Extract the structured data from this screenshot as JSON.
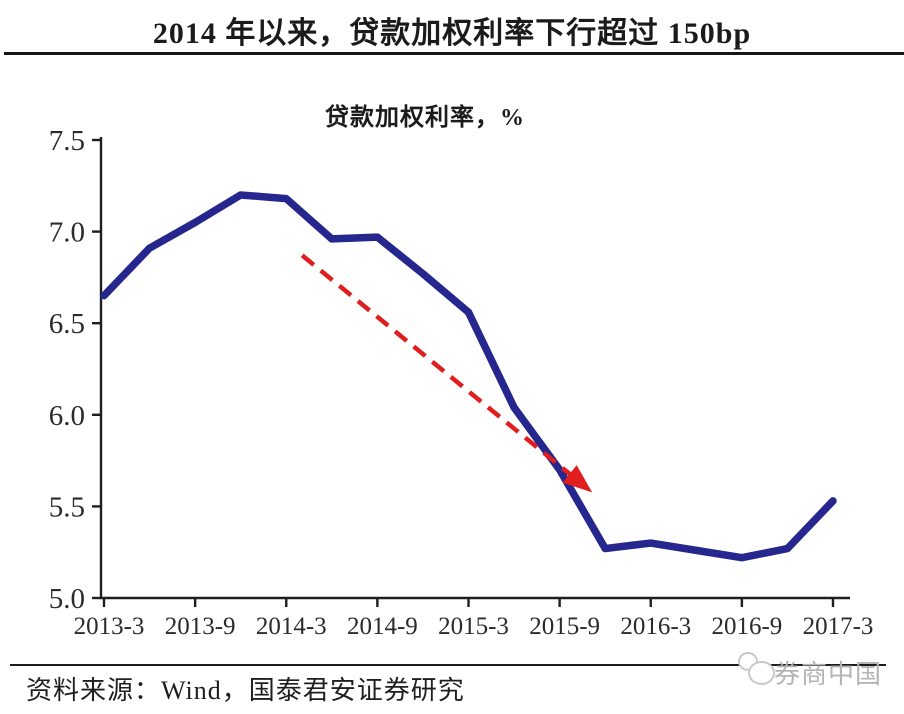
{
  "page": {
    "title": "2014 年以来，贷款加权利率下行超过 150bp",
    "footer": {
      "source_label": "资料来源：Wind，国泰君安证券研究",
      "watermark_text": "券商中国"
    }
  },
  "chart_data": {
    "type": "line",
    "title": "贷款加权利率，%",
    "x": [
      "2013-3",
      "2013-6",
      "2013-9",
      "2013-12",
      "2014-3",
      "2014-6",
      "2014-9",
      "2014-12",
      "2015-3",
      "2015-6",
      "2015-9",
      "2015-12",
      "2016-3",
      "2016-6",
      "2016-9",
      "2016-12",
      "2017-3"
    ],
    "series": [
      {
        "name": "贷款加权利率",
        "values": [
          6.65,
          6.91,
          7.05,
          7.2,
          7.18,
          6.96,
          6.97,
          6.77,
          6.56,
          6.04,
          5.7,
          5.27,
          5.3,
          5.26,
          5.22,
          5.27,
          5.53
        ]
      }
    ],
    "x_tick_labels": [
      "2013-3",
      "2013-9",
      "2014-3",
      "2014-9",
      "2015-3",
      "2015-9",
      "2016-3",
      "2016-9",
      "2017-3"
    ],
    "y_ticks": [
      "5.0",
      "5.5",
      "6.0",
      "6.5",
      "7.0",
      "7.5"
    ],
    "ylim": [
      5.0,
      7.5
    ],
    "grid": false,
    "legend_position": "none",
    "colors": {
      "line": "#26268f",
      "arrow": "#e01e1e",
      "axis": "#1f1f1f",
      "tick_text": "#2b2b2b"
    },
    "annotation_arrow": {
      "style": "dashed",
      "from": {
        "x": 4.35,
        "value": 6.87
      },
      "to": {
        "x": 10.6,
        "value": 5.6
      }
    }
  }
}
